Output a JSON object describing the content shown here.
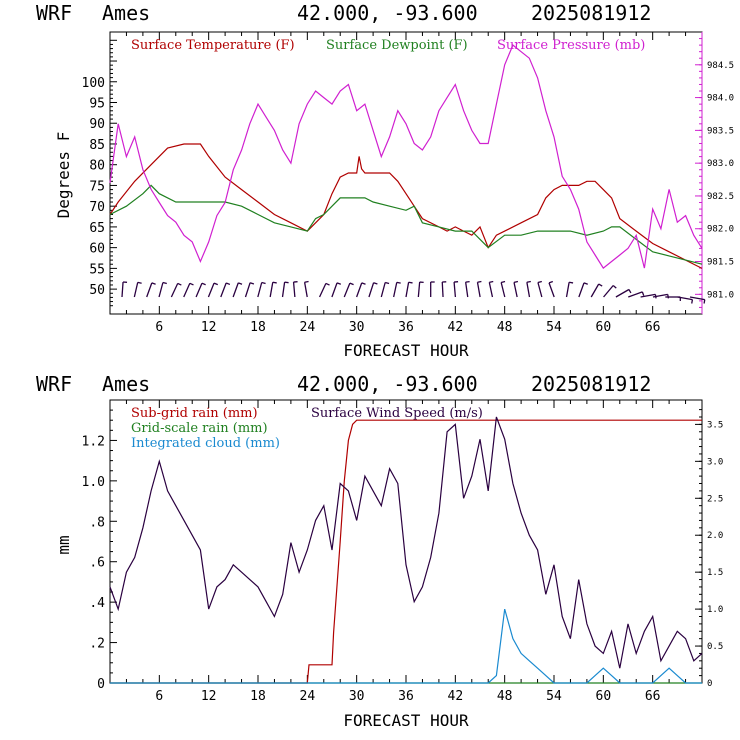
{
  "header": {
    "model": "WRF",
    "station": "Ames",
    "coords": "42.000, -93.600",
    "run": "2025081912"
  },
  "colors": {
    "temperature": "#b00000",
    "dewpoint": "#208020",
    "pressure": "#d020d0",
    "subgrid_rain": "#b00000",
    "gridscale_rain": "#208020",
    "cloud": "#1a8ad0",
    "wind": "#2a0040",
    "barbs": "#2a0040"
  },
  "chart_data": [
    {
      "type": "line",
      "xlabel": "FORECAST HOUR",
      "ylabel": "Degrees F",
      "xlim": [
        0,
        72
      ],
      "ylim": [
        44,
        112
      ],
      "y2lim": [
        980.7,
        985.0
      ],
      "xticks": [
        6,
        12,
        18,
        24,
        30,
        36,
        42,
        48,
        54,
        60,
        66
      ],
      "yticks": [
        50,
        55,
        60,
        65,
        70,
        75,
        80,
        85,
        90,
        95,
        100
      ],
      "y2ticks": [
        "981.0",
        "981.5",
        "982.0",
        "982.5",
        "983.0",
        "983.5",
        "984.0",
        "984.5"
      ],
      "legend_placement": "top",
      "series": [
        {
          "name": "Surface Temperature (F)",
          "axis": "left",
          "x": [
            0,
            1,
            3,
            5,
            7,
            9,
            11,
            12,
            14,
            16,
            18,
            20,
            22,
            24,
            25,
            26,
            27,
            28,
            29,
            30,
            30.3,
            30.6,
            31,
            32,
            34,
            35,
            36,
            37,
            38,
            40,
            41,
            42,
            43,
            44,
            45,
            46,
            47,
            48,
            50,
            52,
            53,
            54,
            55,
            56,
            57,
            58,
            59,
            60,
            61,
            62,
            64,
            66,
            68,
            70,
            72
          ],
          "y": [
            68,
            71,
            76,
            80,
            84,
            85,
            85,
            82,
            77,
            74,
            71,
            68,
            66,
            64,
            66,
            68,
            73,
            77,
            78,
            78,
            82,
            79,
            78,
            78,
            78,
            76,
            73,
            70,
            67,
            65,
            64,
            65,
            64,
            63,
            65,
            60,
            63,
            64,
            66,
            68,
            72,
            74,
            75,
            75,
            75,
            76,
            76,
            74,
            72,
            67,
            64,
            61,
            59,
            57,
            55
          ]
        },
        {
          "name": "Surface Dewpoint (F)",
          "axis": "left",
          "x": [
            0,
            2,
            4,
            5,
            6,
            8,
            10,
            12,
            14,
            16,
            18,
            20,
            22,
            24,
            25,
            26,
            27,
            28,
            30,
            31,
            32,
            34,
            36,
            37,
            38,
            40,
            42,
            44,
            46,
            48,
            50,
            52,
            54,
            56,
            58,
            60,
            61,
            62,
            64,
            66,
            68,
            70,
            72
          ],
          "y": [
            68,
            70,
            73,
            75,
            73,
            71,
            71,
            71,
            71,
            70,
            68,
            66,
            65,
            64,
            67,
            68,
            70,
            72,
            72,
            72,
            71,
            70,
            69,
            70,
            66,
            65,
            64,
            64,
            60,
            63,
            63,
            64,
            64,
            64,
            63,
            64,
            65,
            65,
            62,
            59,
            58,
            57,
            56
          ]
        },
        {
          "name": "Surface Pressure (mb)",
          "axis": "right",
          "x": [
            0,
            1,
            2,
            3,
            4,
            5,
            6,
            7,
            8,
            9,
            10,
            11,
            12,
            13,
            14,
            15,
            16,
            17,
            18,
            19,
            20,
            21,
            22,
            23,
            24,
            25,
            26,
            27,
            28,
            29,
            30,
            31,
            32,
            33,
            34,
            35,
            36,
            37,
            38,
            39,
            40,
            41,
            42,
            43,
            44,
            45,
            46,
            47,
            48,
            49,
            50,
            51,
            52,
            53,
            54,
            55,
            56,
            57,
            58,
            59,
            60,
            61,
            62,
            63,
            64,
            65,
            66,
            67,
            68,
            69,
            70,
            71,
            72
          ],
          "y": [
            982.7,
            983.6,
            983.1,
            983.4,
            982.9,
            982.6,
            982.4,
            982.2,
            982.1,
            981.9,
            981.8,
            981.5,
            981.8,
            982.2,
            982.4,
            982.9,
            983.2,
            983.6,
            983.9,
            983.7,
            983.5,
            983.2,
            983.0,
            983.6,
            983.9,
            984.1,
            984.0,
            983.9,
            984.1,
            984.2,
            983.8,
            983.9,
            983.5,
            983.1,
            983.4,
            983.8,
            983.6,
            983.3,
            983.2,
            983.4,
            983.8,
            984.0,
            984.2,
            983.8,
            983.5,
            983.3,
            983.3,
            983.9,
            984.5,
            984.8,
            984.7,
            984.6,
            984.3,
            983.8,
            983.4,
            982.8,
            982.6,
            982.3,
            981.8,
            981.6,
            981.4,
            981.5,
            981.6,
            981.7,
            981.9,
            981.4,
            982.3,
            982.0,
            982.6,
            982.1,
            982.2,
            981.9,
            981.7
          ]
        }
      ]
    },
    {
      "type": "line",
      "xlabel": "FORECAST HOUR",
      "ylabel": "mm",
      "xlim": [
        0,
        72
      ],
      "ylim": [
        0,
        1.4
      ],
      "y2lim": [
        0,
        3.83
      ],
      "xticks": [
        6,
        12,
        18,
        24,
        30,
        36,
        42,
        48,
        54,
        60,
        66
      ],
      "yticks": [
        "0",
        ".2",
        ".4",
        ".6",
        ".8",
        "1.0",
        "1.2"
      ],
      "y2ticks": [
        "0",
        "0.5",
        "1.0",
        "1.5",
        "2.0",
        "2.5",
        "3.0",
        "3.5"
      ],
      "legend_placement": "top-left",
      "series": [
        {
          "name": "Sub-grid rain (mm)",
          "axis": "left",
          "x": [
            0,
            24,
            24.2,
            27,
            27.2,
            28,
            28.5,
            29,
            29.5,
            30,
            72
          ],
          "y": [
            0,
            0,
            0.09,
            0.09,
            0.25,
            0.7,
            1.0,
            1.2,
            1.28,
            1.3,
            1.3
          ]
        },
        {
          "name": "Grid-scale rain (mm)",
          "axis": "left",
          "x": [
            0,
            72
          ],
          "y": [
            0,
            0
          ]
        },
        {
          "name": "Integrated cloud (mm)",
          "axis": "right",
          "x": [
            0,
            46,
            47,
            48,
            49,
            50,
            51,
            52,
            53,
            54,
            58,
            59,
            60,
            61,
            62,
            66,
            67,
            68,
            69,
            70,
            72
          ],
          "y": [
            0,
            0,
            0.1,
            1.0,
            0.6,
            0.4,
            0.3,
            0.2,
            0.1,
            0,
            0,
            0.1,
            0.2,
            0.1,
            0,
            0,
            0.1,
            0.2,
            0.1,
            0,
            0
          ]
        },
        {
          "name": "Surface Wind Speed (m/s)",
          "axis": "right",
          "x": [
            0,
            1,
            2,
            3,
            4,
            5,
            6,
            7,
            8,
            9,
            10,
            11,
            12,
            13,
            14,
            15,
            16,
            17,
            18,
            19,
            20,
            21,
            22,
            23,
            24,
            25,
            26,
            27,
            28,
            29,
            30,
            31,
            32,
            33,
            34,
            35,
            36,
            37,
            38,
            39,
            40,
            41,
            42,
            43,
            44,
            45,
            46,
            47,
            48,
            49,
            50,
            51,
            52,
            53,
            54,
            55,
            56,
            57,
            58,
            59,
            60,
            61,
            62,
            63,
            64,
            65,
            66,
            67,
            68,
            69,
            70,
            71,
            72
          ],
          "y": [
            1.3,
            1.0,
            1.5,
            1.7,
            2.1,
            2.6,
            3.0,
            2.6,
            2.4,
            2.2,
            2.0,
            1.8,
            1.0,
            1.3,
            1.4,
            1.6,
            1.5,
            1.4,
            1.3,
            1.1,
            0.9,
            1.2,
            1.9,
            1.5,
            1.8,
            2.2,
            2.4,
            1.8,
            2.7,
            2.6,
            2.2,
            2.8,
            2.6,
            2.4,
            2.9,
            2.7,
            1.6,
            1.1,
            1.3,
            1.7,
            2.3,
            3.4,
            3.5,
            2.5,
            2.8,
            3.3,
            2.6,
            3.6,
            3.3,
            2.7,
            2.3,
            2.0,
            1.8,
            1.2,
            1.6,
            0.9,
            0.6,
            1.4,
            0.8,
            0.5,
            0.4,
            0.7,
            0.2,
            0.8,
            0.4,
            0.7,
            0.9,
            0.3,
            0.5,
            0.7,
            0.6,
            0.3,
            0.4
          ]
        }
      ]
    }
  ],
  "wind_barbs": [
    4,
    13,
    20,
    15,
    25,
    24,
    23,
    22,
    21,
    20,
    18,
    15,
    10,
    8,
    -5,
    -10,
    25,
    20,
    22,
    20,
    18,
    15,
    12,
    10,
    5,
    0,
    -3,
    -5,
    -8,
    -10,
    -12,
    -14,
    -12,
    -10,
    -15,
    -20,
    10,
    20,
    30,
    40,
    60,
    70,
    80,
    80,
    90,
    100,
    100
  ]
}
